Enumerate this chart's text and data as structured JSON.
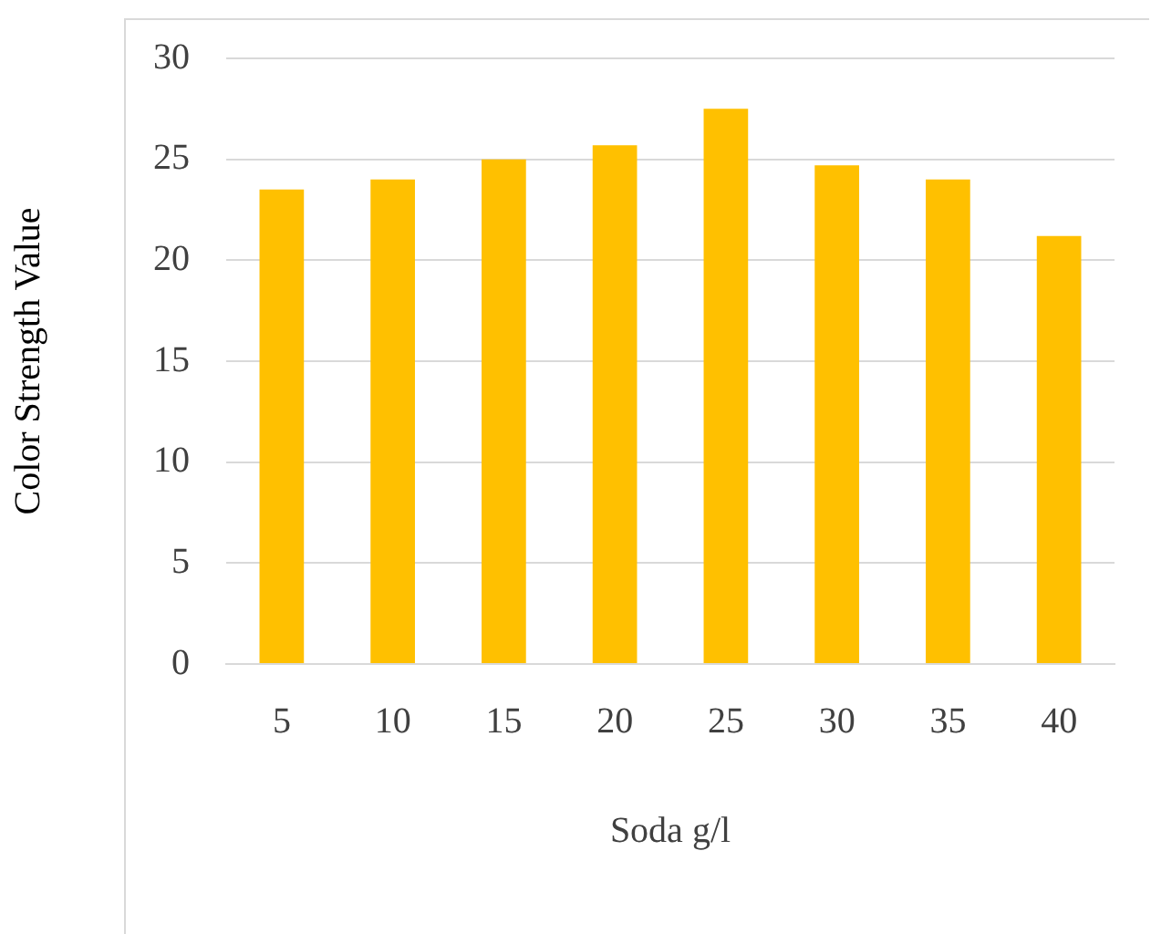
{
  "chart_data": {
    "type": "bar",
    "xlabel": "Soda g/l",
    "ylabel": "Color Strength Value",
    "categories": [
      "5",
      "10",
      "15",
      "20",
      "25",
      "30",
      "35",
      "40"
    ],
    "values": [
      23.5,
      24,
      25,
      25.7,
      27.5,
      24.7,
      24,
      21.2
    ],
    "color": "#ffc000",
    "ylim": [
      0,
      30
    ],
    "yticks": [
      0,
      5,
      10,
      15,
      20,
      25,
      30
    ],
    "grid": "y",
    "legend": false
  }
}
